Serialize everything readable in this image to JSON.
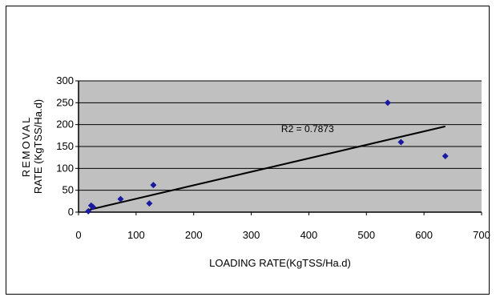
{
  "chart_data": {
    "type": "scatter",
    "title": "",
    "xlabel": "LOADING RATE(KgTSS/Ha.d)",
    "ylabel_line1": "REMOVAL",
    "ylabel_line2": "RATE (KgTSS/Ha.d)",
    "xlim": [
      0,
      700
    ],
    "ylim": [
      0,
      300
    ],
    "xticks": [
      0,
      100,
      200,
      300,
      400,
      500,
      600,
      700
    ],
    "yticks": [
      0,
      50,
      100,
      150,
      200,
      250,
      300
    ],
    "grid": true,
    "legend": "none",
    "point_color": "#1a1aa0",
    "plot_bg": "#c0c0c0",
    "series": [
      {
        "x": [
          17,
          22,
          25,
          73,
          123,
          130,
          537,
          560,
          637
        ],
        "y": [
          2,
          15,
          12,
          30,
          20,
          62,
          250,
          160,
          128
        ]
      }
    ],
    "trendline": {
      "x": [
        17,
        637
      ],
      "y": [
        5,
        196
      ]
    },
    "annotation": {
      "text": "R2 = 0.7873",
      "x": 352,
      "y": 183
    }
  }
}
